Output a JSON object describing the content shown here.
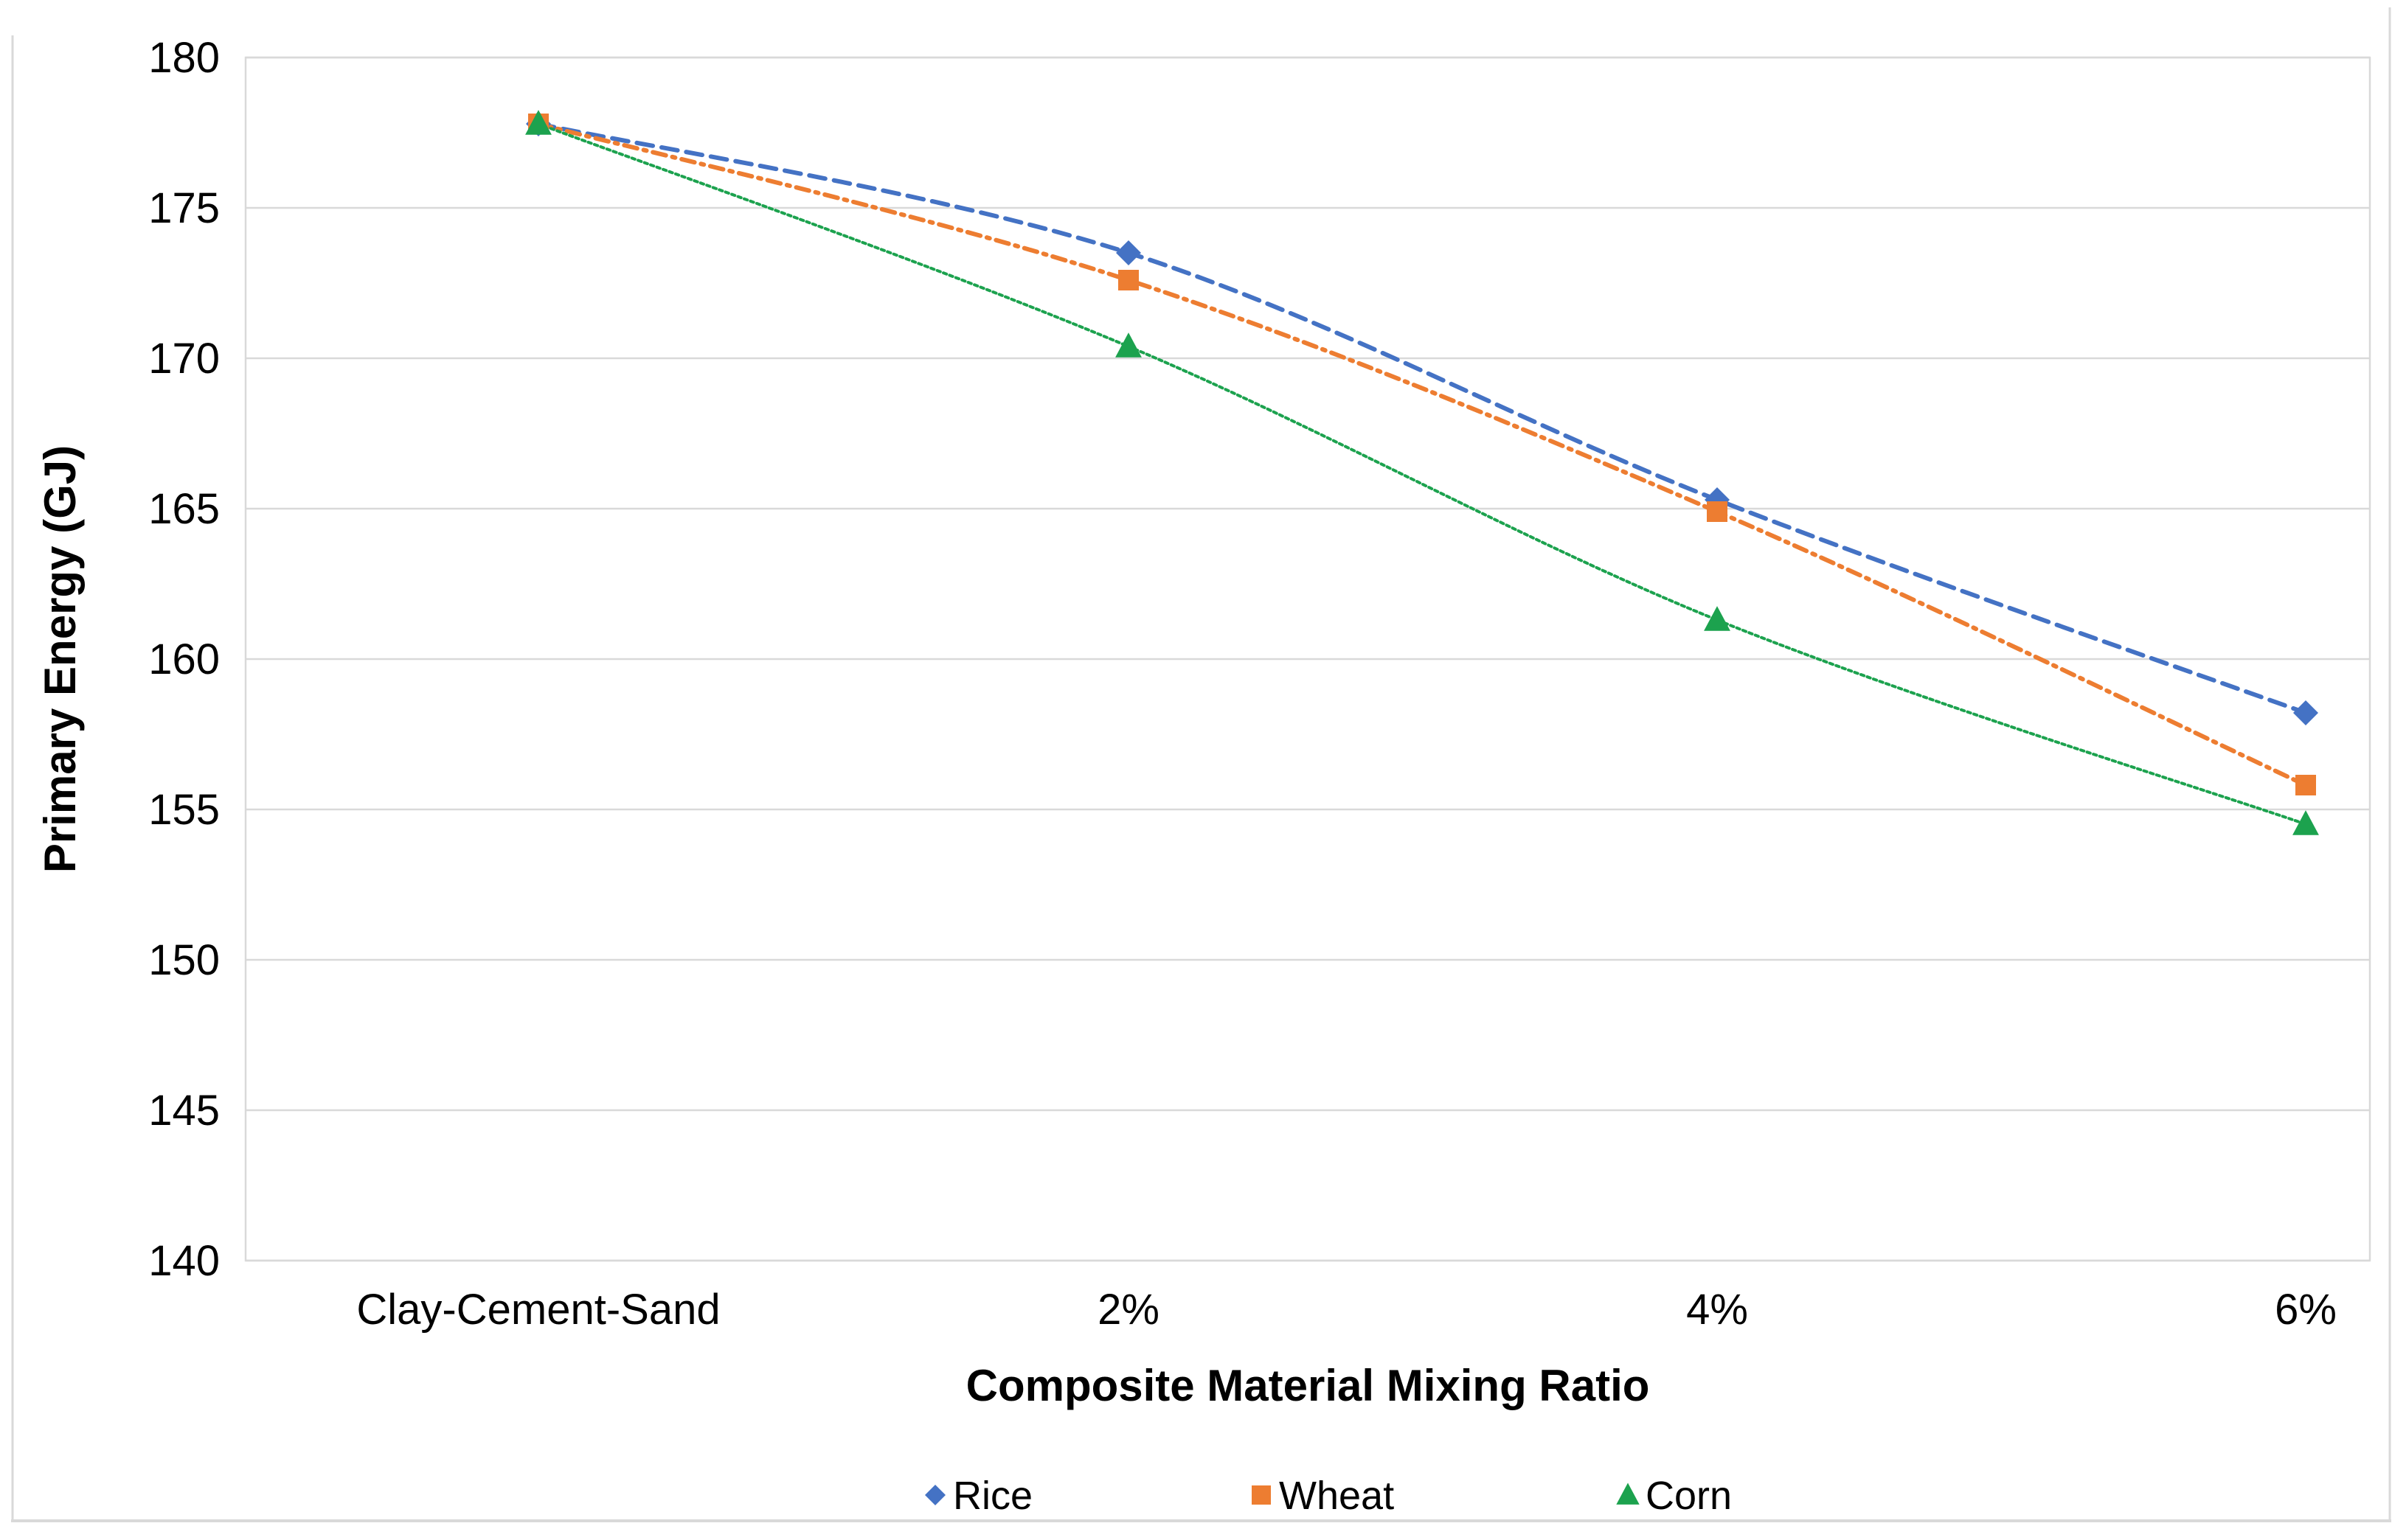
{
  "figure": {
    "background_color": "#FFFFFF",
    "border_color": "#D9D9D9"
  },
  "chart_data": {
    "type": "line",
    "title": "",
    "categories": [
      "Clay-Cement-Sand",
      "2%",
      "4%",
      "6%"
    ],
    "series": [
      {
        "name": "Rice",
        "color": "#4472C4",
        "line_style": "dashed",
        "marker": "diamond",
        "values": [
          177.8,
          173.5,
          165.3,
          158.2
        ]
      },
      {
        "name": "Wheat",
        "color": "#ED7D31",
        "line_style": "dash-dot",
        "marker": "square",
        "values": [
          177.8,
          172.6,
          164.9,
          155.8
        ]
      },
      {
        "name": "Corn",
        "color": "#1CA24E",
        "line_style": "dotted",
        "marker": "triangle",
        "values": [
          177.8,
          170.4,
          161.3,
          154.5
        ]
      }
    ],
    "xlabel": "Composite Material Mixing Ratio",
    "ylabel": "Primary Energy (GJ)",
    "ylim": [
      140,
      180
    ],
    "yticks": [
      140,
      145,
      150,
      155,
      160,
      165,
      170,
      175,
      180
    ],
    "grid": true,
    "gridline_color": "#D9D9D9",
    "smooth_lines": true,
    "legend_position": "bottom",
    "text_color": "#000000"
  }
}
